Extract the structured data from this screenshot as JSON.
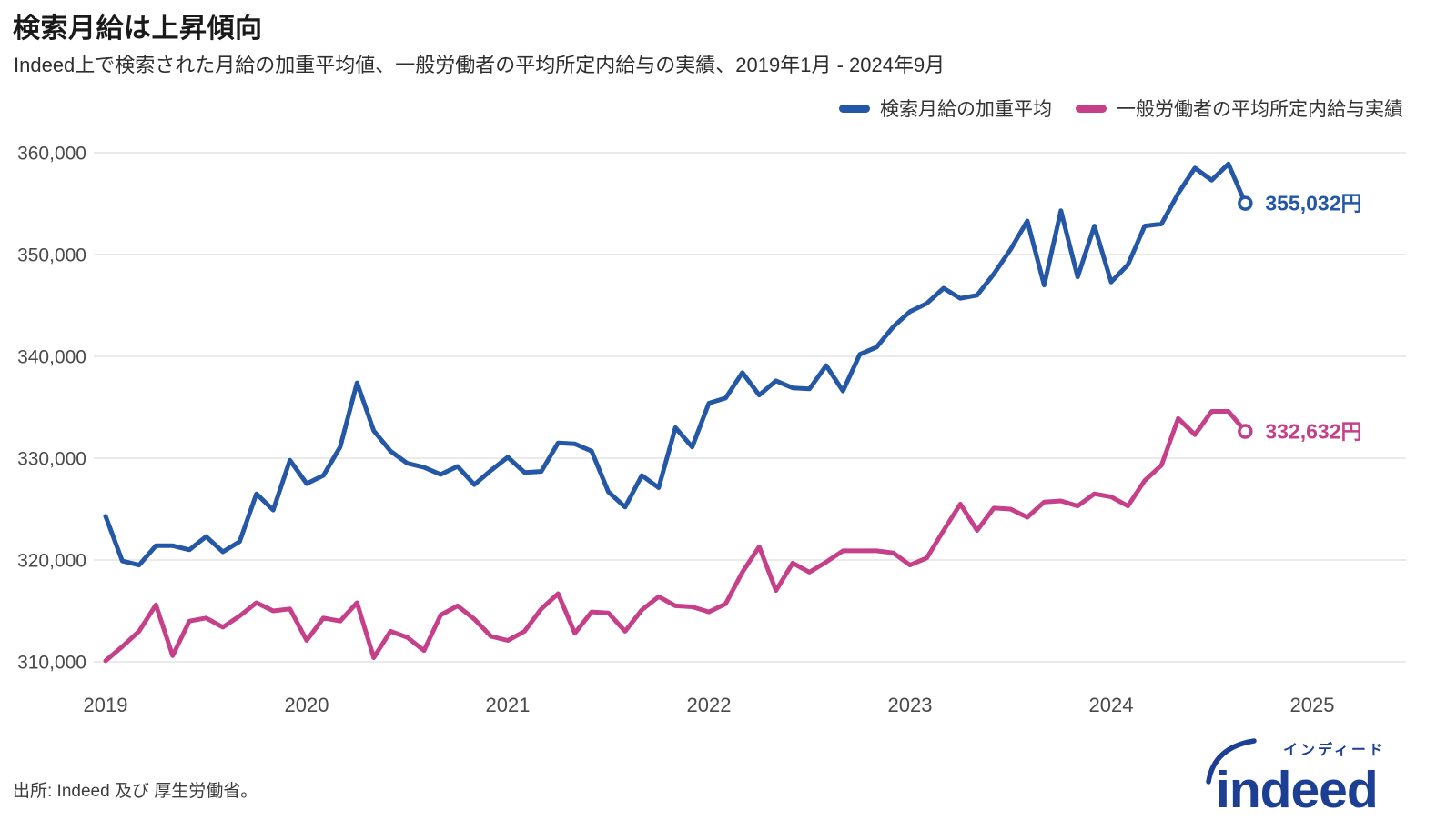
{
  "header": {
    "title": "検索月給は上昇傾向",
    "subtitle": "Indeed上で検索された月給の加重平均値、一般労働者の平均所定内給与の実績、2019年1月 - 2024年9月"
  },
  "footer": {
    "source": "出所: Indeed 及び 厚生労働省。",
    "logo_text": "indeed",
    "logo_kana": "インディード",
    "logo_color": "#1c3f94"
  },
  "colors": {
    "grid": "#e3e3e3",
    "axis_text": "#4a4a4a",
    "blue": "#2457a5",
    "pink": "#c64089"
  },
  "chart_data": {
    "type": "line",
    "title": "検索月給は上昇傾向",
    "x_tick_labels": [
      "2019",
      "2020",
      "2021",
      "2022",
      "2023",
      "2024",
      "2025"
    ],
    "y_ticks": [
      310000,
      320000,
      330000,
      340000,
      350000,
      360000
    ],
    "ylim": [
      310000,
      360000
    ],
    "x_range": [
      "2019-01",
      "2024-09"
    ],
    "frequency": "monthly",
    "grid": "horizontal-only",
    "legend_position": "top-right",
    "series": [
      {
        "name": "検索月給の加重平均",
        "color": "#2457a5",
        "end_label": "355,032円",
        "end_value": 355032,
        "values": [
          324300,
          319900,
          319500,
          321400,
          321400,
          321000,
          322300,
          320800,
          321800,
          326500,
          324900,
          329800,
          327500,
          328300,
          331100,
          337400,
          332700,
          330700,
          329500,
          329100,
          328400,
          329200,
          327400,
          328800,
          330100,
          328600,
          328700,
          331500,
          331400,
          330700,
          326700,
          325200,
          328300,
          327100,
          333000,
          331100,
          335400,
          335900,
          338400,
          336200,
          337600,
          336900,
          336800,
          339100,
          336600,
          340200,
          340900,
          342900,
          344400,
          345200,
          346700,
          345700,
          346000,
          348100,
          350500,
          353300,
          347000,
          354300,
          347800,
          352800,
          347300,
          349000,
          352800,
          353000,
          356000,
          358500,
          357300,
          358900,
          355032
        ]
      },
      {
        "name": "一般労働者の平均所定内給与実績",
        "color": "#c64089",
        "end_label": "332,632円",
        "end_value": 332632,
        "values": [
          310100,
          311500,
          313000,
          315600,
          310600,
          314000,
          314300,
          313400,
          314500,
          315800,
          315000,
          315200,
          312100,
          314300,
          314000,
          315800,
          310400,
          313000,
          312400,
          311100,
          314600,
          315500,
          314200,
          312500,
          312100,
          313000,
          315200,
          316700,
          312800,
          314900,
          314800,
          313000,
          315100,
          316400,
          315500,
          315400,
          314900,
          315700,
          318800,
          321300,
          317000,
          319700,
          318800,
          319800,
          320900,
          320900,
          320900,
          320700,
          319500,
          320200,
          322900,
          325500,
          322900,
          325100,
          325000,
          324200,
          325700,
          325800,
          325300,
          326500,
          326200,
          325300,
          327800,
          329300,
          333900,
          332300,
          334600,
          334600,
          332632
        ]
      }
    ]
  }
}
